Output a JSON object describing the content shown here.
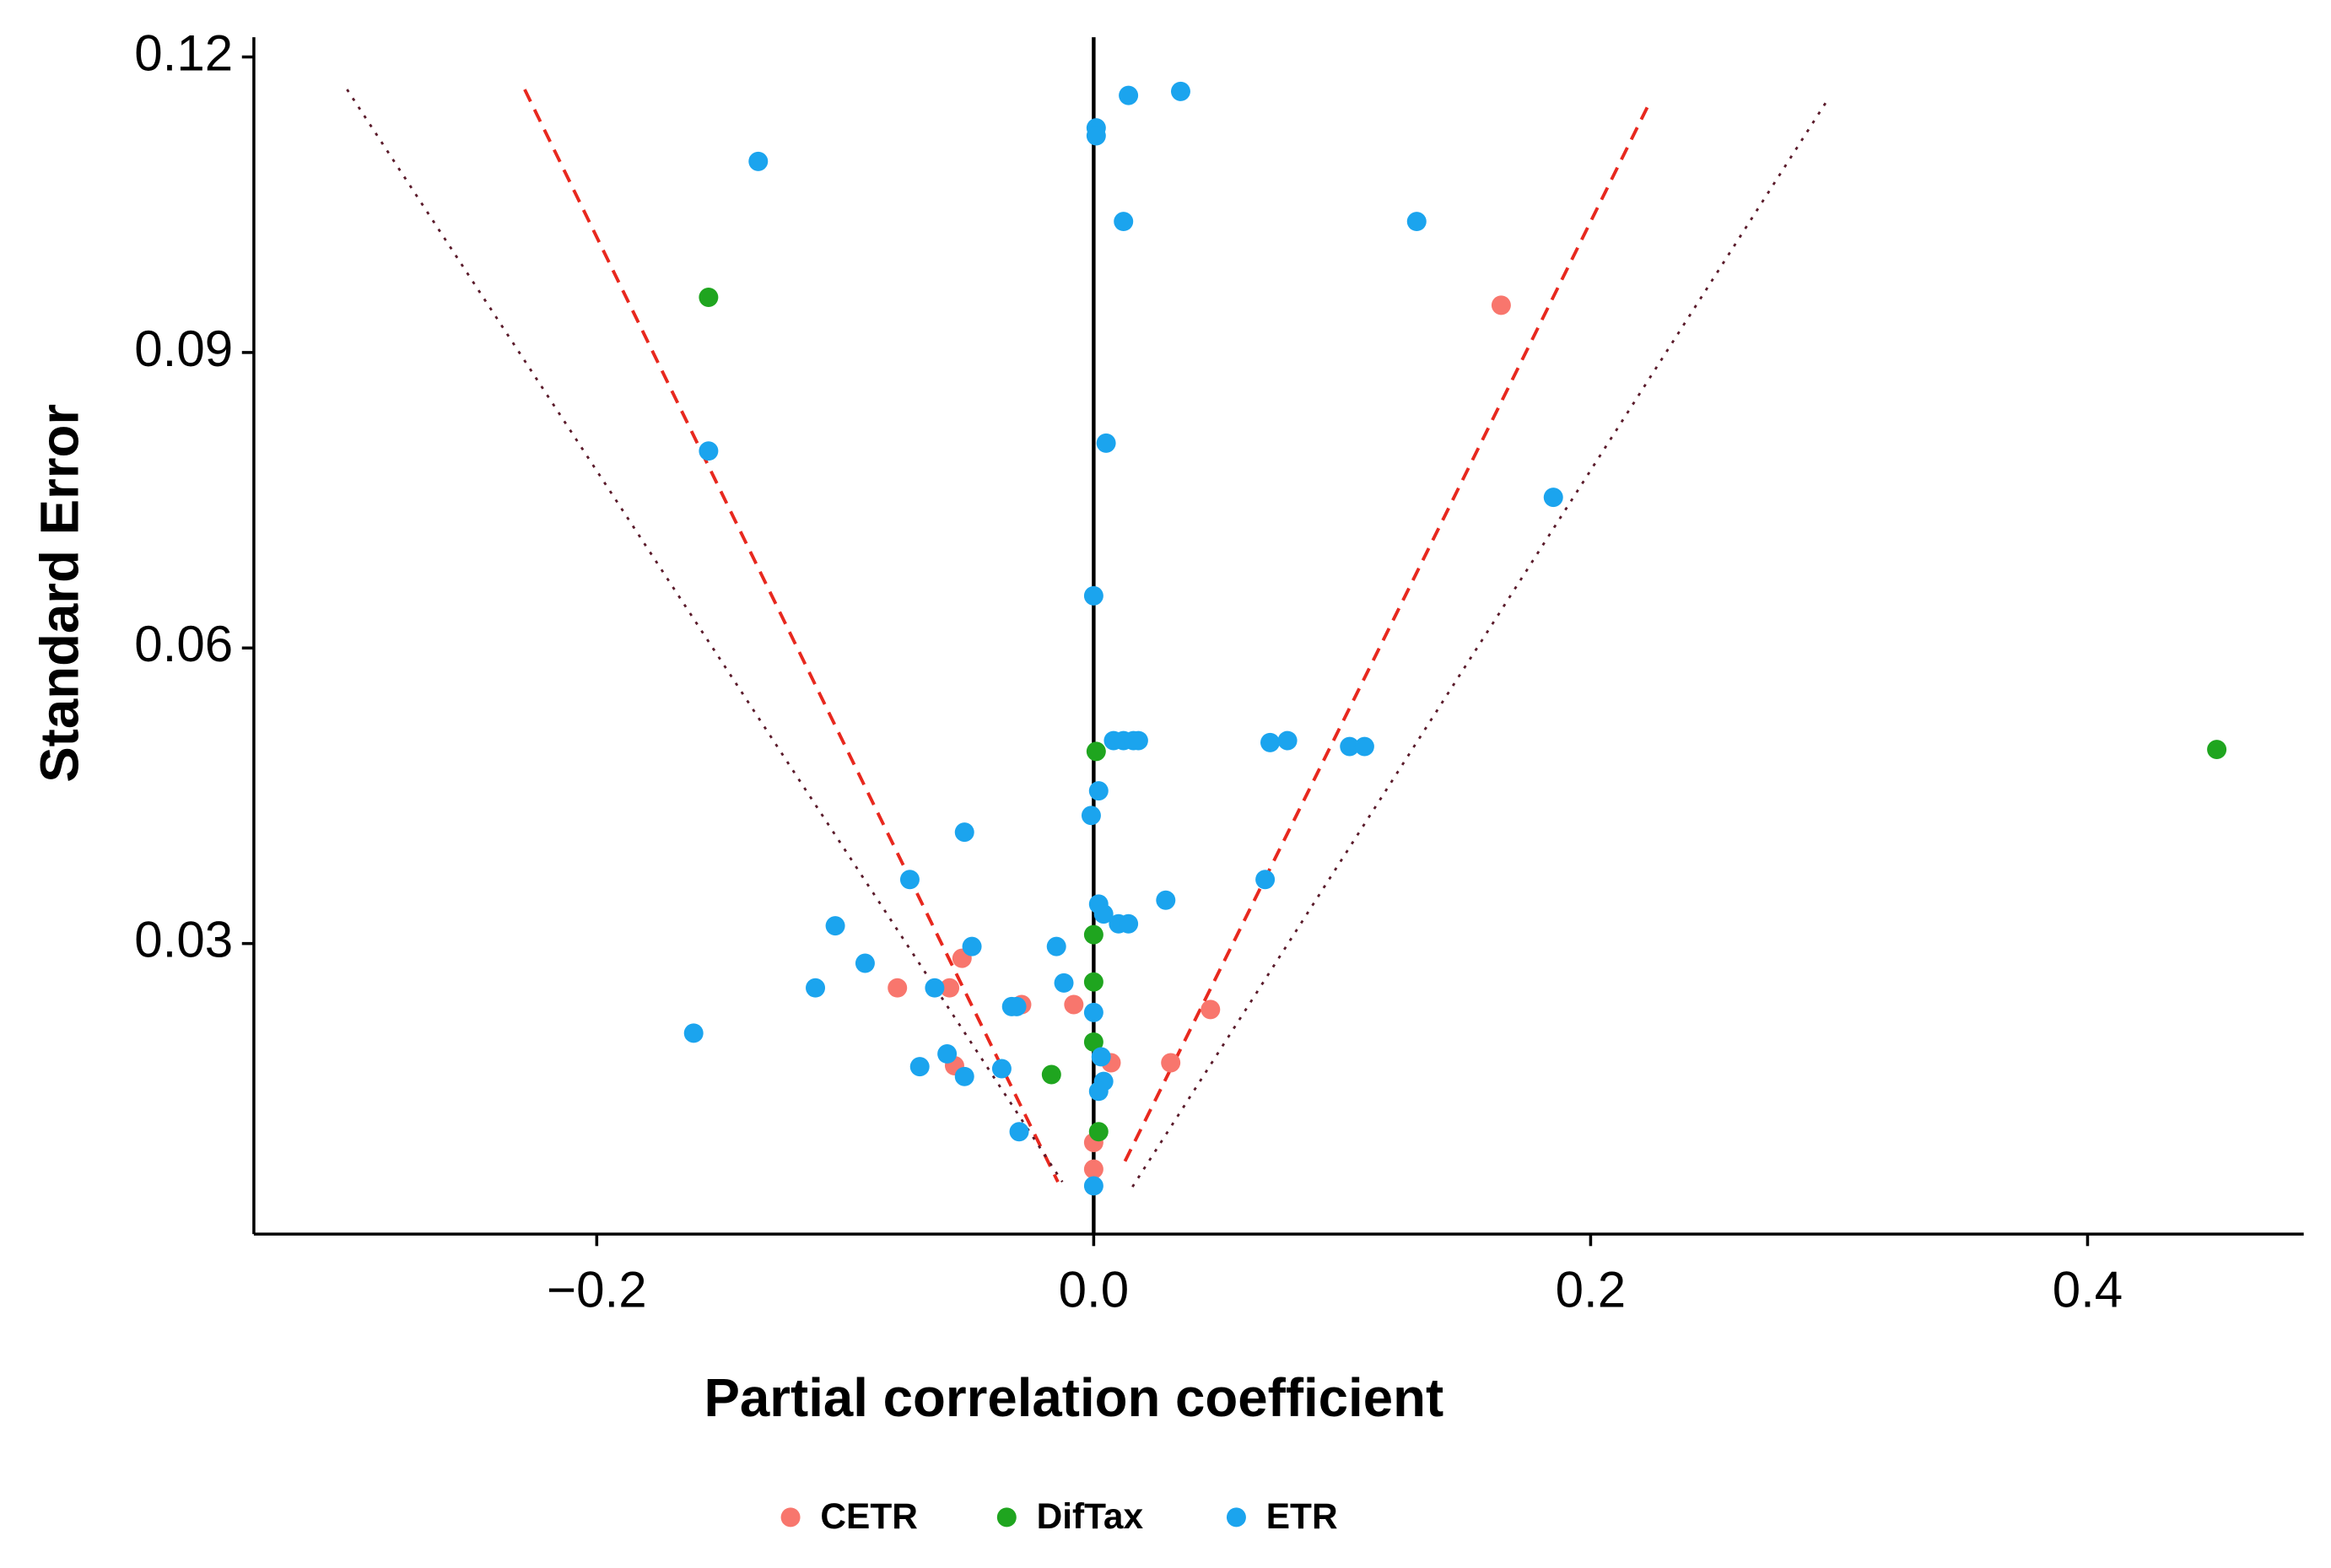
{
  "chart_data": {
    "type": "scatter",
    "xlabel": "Partial correlation coefficient",
    "ylabel": "Standard Error",
    "xlim": [
      -0.338,
      0.487
    ],
    "ylim": [
      0.0005,
      0.122
    ],
    "xticks": [
      {
        "value": -0.2,
        "label": "−0.2"
      },
      {
        "value": 0,
        "label": "0.0"
      },
      0.2,
      0.4
    ],
    "yticks": [
      0.03,
      0.06,
      0.09,
      0.12
    ],
    "reference_x": 0,
    "legend": "bottom",
    "series": [
      {
        "name": "CETR",
        "color": "#F8766D",
        "x": [
          0.164,
          -0.079,
          -0.058,
          -0.053,
          -0.008,
          0.047,
          0.007,
          0.031,
          -0.056,
          0.0,
          0.0,
          -0.029
        ],
        "values": [
          0.0948,
          0.0255,
          0.0255,
          0.0285,
          0.0238,
          0.0233,
          0.0179,
          0.0179,
          0.0176,
          0.0098,
          0.0071,
          0.0238
        ]
      },
      {
        "name": "DifTax",
        "color": "#1FA51F",
        "x": [
          -0.155,
          0.452,
          0.001,
          0.0,
          0.0,
          0.0,
          -0.017,
          0.002
        ],
        "values": [
          0.0956,
          0.0497,
          0.0495,
          0.0309,
          0.0261,
          0.02,
          0.0167,
          0.0109
        ]
      },
      {
        "name": "ETR",
        "color": "#1BA4EE",
        "x": [
          0.035,
          0.014,
          0.001,
          0.001,
          -0.135,
          0.012,
          0.13,
          -0.155,
          0.005,
          0.185,
          0.0,
          0.008,
          0.012,
          0.016,
          0.018,
          0.071,
          0.078,
          0.103,
          0.109,
          0.002,
          -0.001,
          -0.052,
          -0.074,
          0.069,
          0.029,
          0.002,
          0.004,
          0.01,
          0.014,
          -0.104,
          -0.049,
          -0.015,
          -0.092,
          -0.112,
          -0.064,
          -0.012,
          -0.033,
          -0.031,
          0.0,
          -0.161,
          -0.059,
          -0.07,
          -0.037,
          -0.052,
          0.003,
          0.004,
          0.002,
          -0.03,
          0.0
        ],
        "values": [
          0.1165,
          0.1161,
          0.1128,
          0.112,
          0.1094,
          0.1033,
          0.1033,
          0.08,
          0.0808,
          0.0753,
          0.0653,
          0.0506,
          0.0506,
          0.0506,
          0.0506,
          0.0504,
          0.0506,
          0.05,
          0.05,
          0.0455,
          0.043,
          0.0413,
          0.0365,
          0.0365,
          0.0344,
          0.034,
          0.033,
          0.032,
          0.032,
          0.0318,
          0.0297,
          0.0297,
          0.028,
          0.0255,
          0.0255,
          0.026,
          0.0236,
          0.0236,
          0.023,
          0.0209,
          0.0188,
          0.0175,
          0.0173,
          0.0165,
          0.0185,
          0.016,
          0.015,
          0.0109,
          0.0054
        ]
      }
    ],
    "lines": [
      {
        "color": "#e8281e",
        "style": "dashed",
        "x": [
          -0.229,
          -0.0144
        ],
        "y": [
          0.1167,
          0.0058
        ]
      },
      {
        "color": "#e8281e",
        "style": "dashed",
        "x": [
          0.0126,
          0.224
        ],
        "y": [
          0.0079,
          0.1155
        ]
      },
      {
        "color": "#5a1a2a",
        "style": "dotted",
        "x": [
          -0.3005,
          -0.0126
        ],
        "y": [
          0.1167,
          0.0058
        ]
      },
      {
        "color": "#5a1a2a",
        "style": "dotted",
        "x": [
          0.0156,
          0.296
        ],
        "y": [
          0.0053,
          0.1159
        ]
      }
    ]
  }
}
